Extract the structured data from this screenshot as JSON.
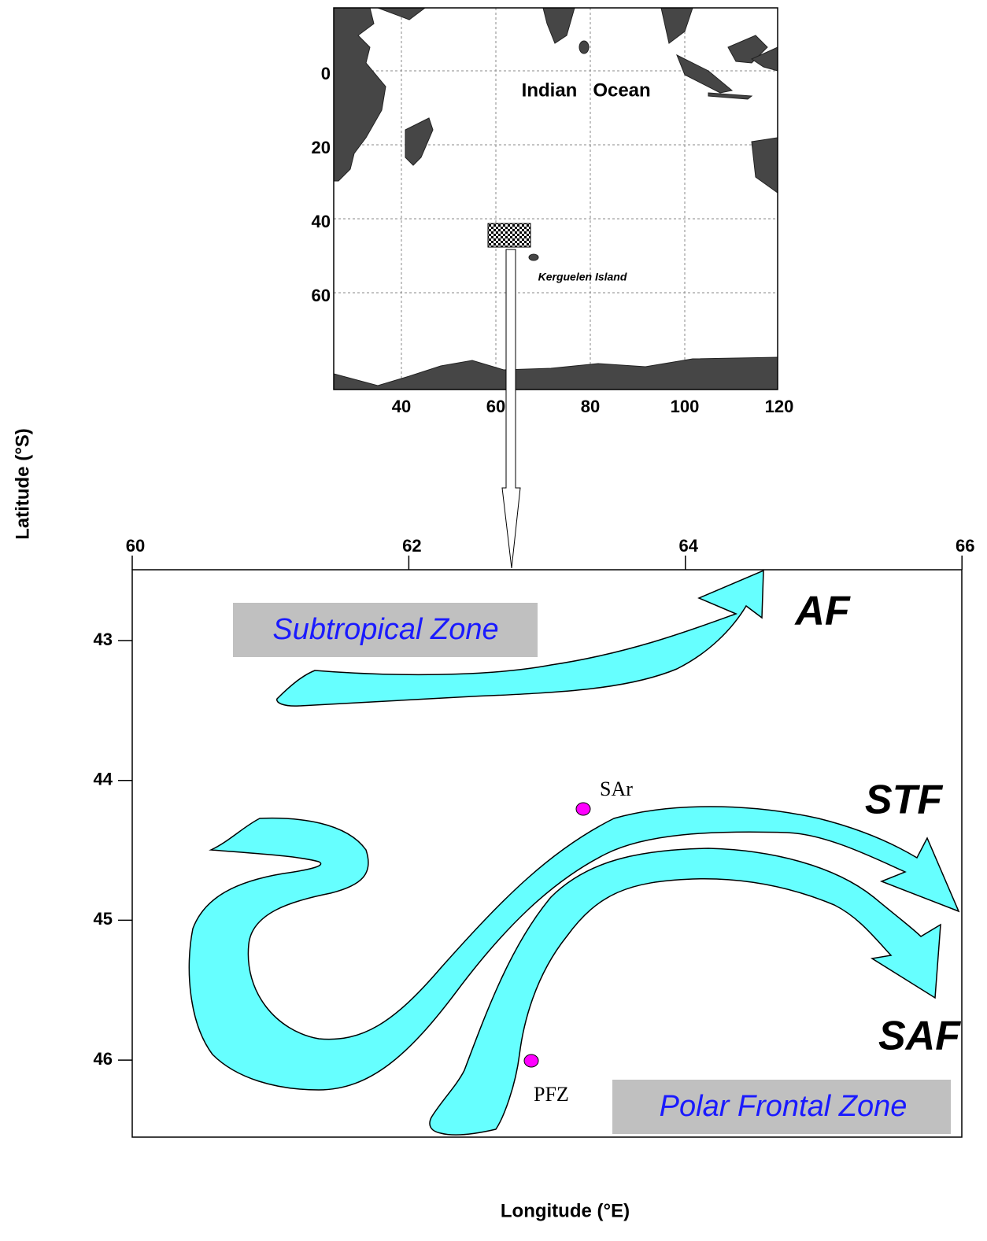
{
  "inset": {
    "title_left": "Indian",
    "title_right": "Ocean",
    "label": "Kerguelen Island",
    "xticks": [
      40,
      60,
      80,
      100,
      120
    ],
    "yticks": [
      0,
      20,
      40,
      60
    ]
  },
  "main": {
    "xticks": [
      60,
      62,
      64,
      66
    ],
    "yticks": [
      43,
      44,
      45,
      46
    ],
    "zones": [
      "Subtropical  Zone",
      "Polar Frontal Zone"
    ],
    "fronts": [
      "AF",
      "STF",
      "SAF"
    ],
    "stations": [
      "SAr",
      "PFZ"
    ]
  },
  "x_label": "Longitude (°E)",
  "y_label": "Latitude (°S)"
}
